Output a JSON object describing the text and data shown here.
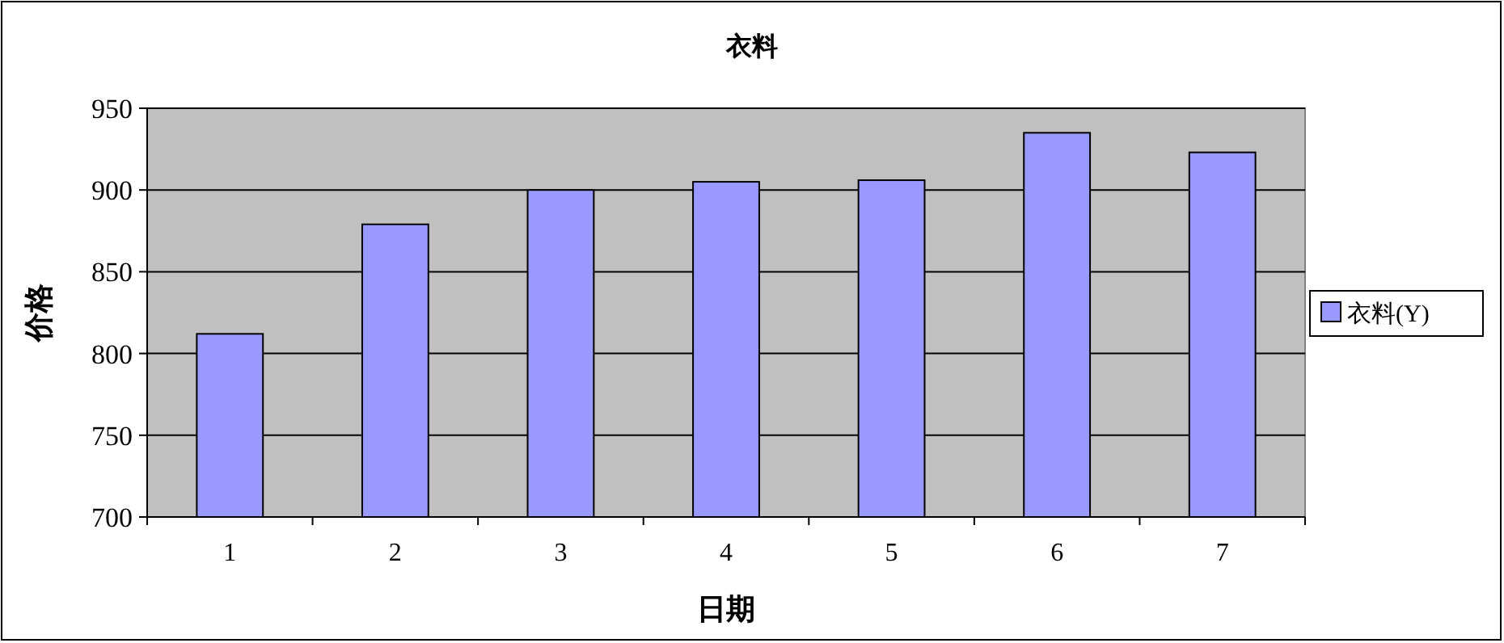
{
  "chart_data": {
    "type": "bar",
    "title": "衣料",
    "xlabel": "日期",
    "ylabel": "价格",
    "categories": [
      "1",
      "2",
      "3",
      "4",
      "5",
      "6",
      "7"
    ],
    "series": [
      {
        "name": "衣料(Y)",
        "color": "#9999ff",
        "values": [
          812,
          879,
          900,
          905,
          906,
          935,
          923
        ]
      }
    ],
    "ylim": [
      700,
      950
    ],
    "yticks": [
      700,
      750,
      800,
      850,
      900,
      950
    ],
    "grid": "y",
    "legend": "right"
  }
}
